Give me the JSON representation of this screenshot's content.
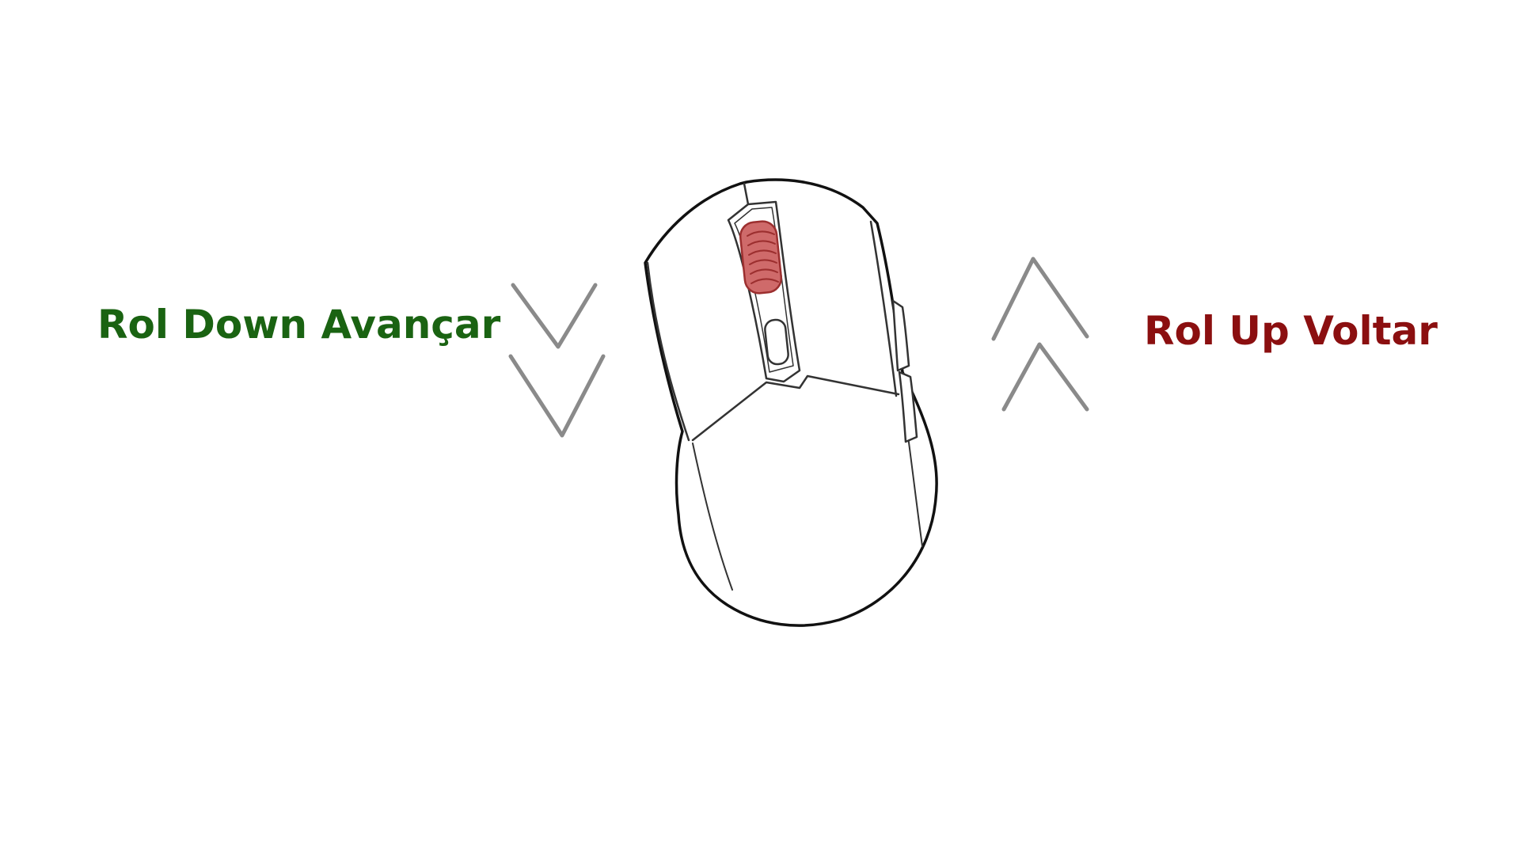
{
  "labels": {
    "scroll_down": "Rol Down Avançar",
    "scroll_up": "Rol Up Voltar"
  },
  "colors": {
    "background": "#ffffff",
    "scroll_down_text": "#1a6312",
    "scroll_up_text": "#8b0f10",
    "mouse_outline": "#111111",
    "mouse_inner_lines": "#333333",
    "wheel_fill": "#cf6a6a",
    "wheel_stroke": "#9c2f2f",
    "arrow_gray": "#8a8a8a"
  },
  "icons": {
    "mouse": "mouse-top-view-icon",
    "down_arrows": "double-chevron-down-icon",
    "up_arrows": "double-chevron-up-icon",
    "scroll_wheel": "scroll-wheel-highlight"
  }
}
